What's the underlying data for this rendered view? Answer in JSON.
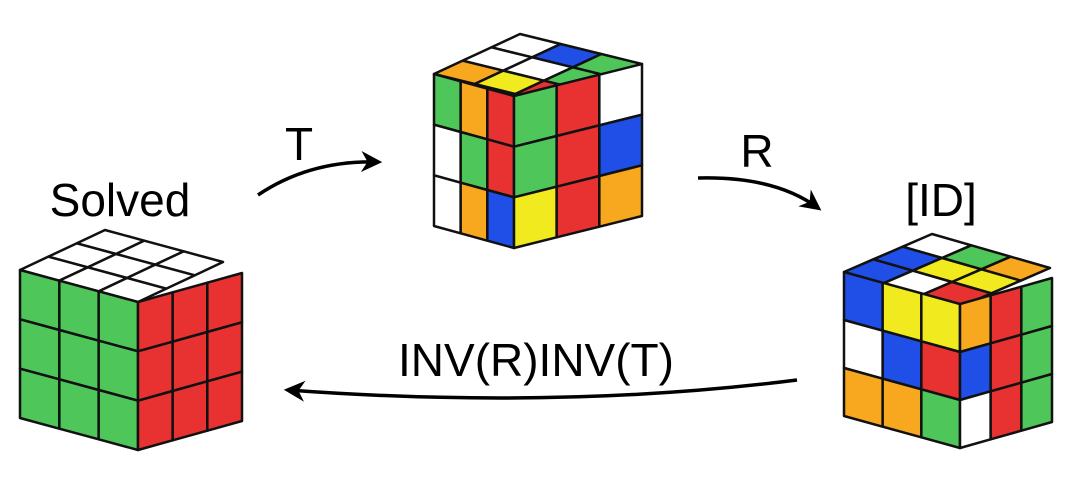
{
  "colors": {
    "G": "#4fc65a",
    "R": "#e83232",
    "W": "#ffffff",
    "B": "#1f4fe6",
    "Y": "#f0ea1e",
    "O": "#f8a81f",
    "edge": "#111111",
    "arrow": "#000000"
  },
  "labels": {
    "solved": "Solved",
    "id": "[ID]",
    "move_t": "T",
    "move_r": "R",
    "inverse": "INV(R)INV(T)"
  },
  "cubes": {
    "solved": {
      "top": [
        "W",
        "W",
        "W",
        "W",
        "W",
        "W",
        "W",
        "W",
        "W"
      ],
      "left": [
        "G",
        "G",
        "G",
        "G",
        "G",
        "G",
        "G",
        "G",
        "G"
      ],
      "right": [
        "R",
        "R",
        "R",
        "R",
        "R",
        "R",
        "R",
        "R",
        "R"
      ]
    },
    "after_t": {
      "top": [
        "W",
        "B",
        "G",
        "W",
        "W",
        "G",
        "O",
        "Y",
        "R"
      ],
      "left": [
        "G",
        "O",
        "R",
        "W",
        "G",
        "R",
        "W",
        "O",
        "B"
      ],
      "right": [
        "G",
        "R",
        "W",
        "G",
        "R",
        "B",
        "Y",
        "R",
        "O"
      ]
    },
    "after_r": {
      "top": [
        "W",
        "G",
        "O",
        "B",
        "Y",
        "Y",
        "B",
        "W",
        "R"
      ],
      "left": [
        "B",
        "Y",
        "Y",
        "W",
        "B",
        "R",
        "O",
        "O",
        "G"
      ],
      "right": [
        "O",
        "R",
        "G",
        "B",
        "R",
        "G",
        "W",
        "R",
        "G"
      ]
    }
  }
}
